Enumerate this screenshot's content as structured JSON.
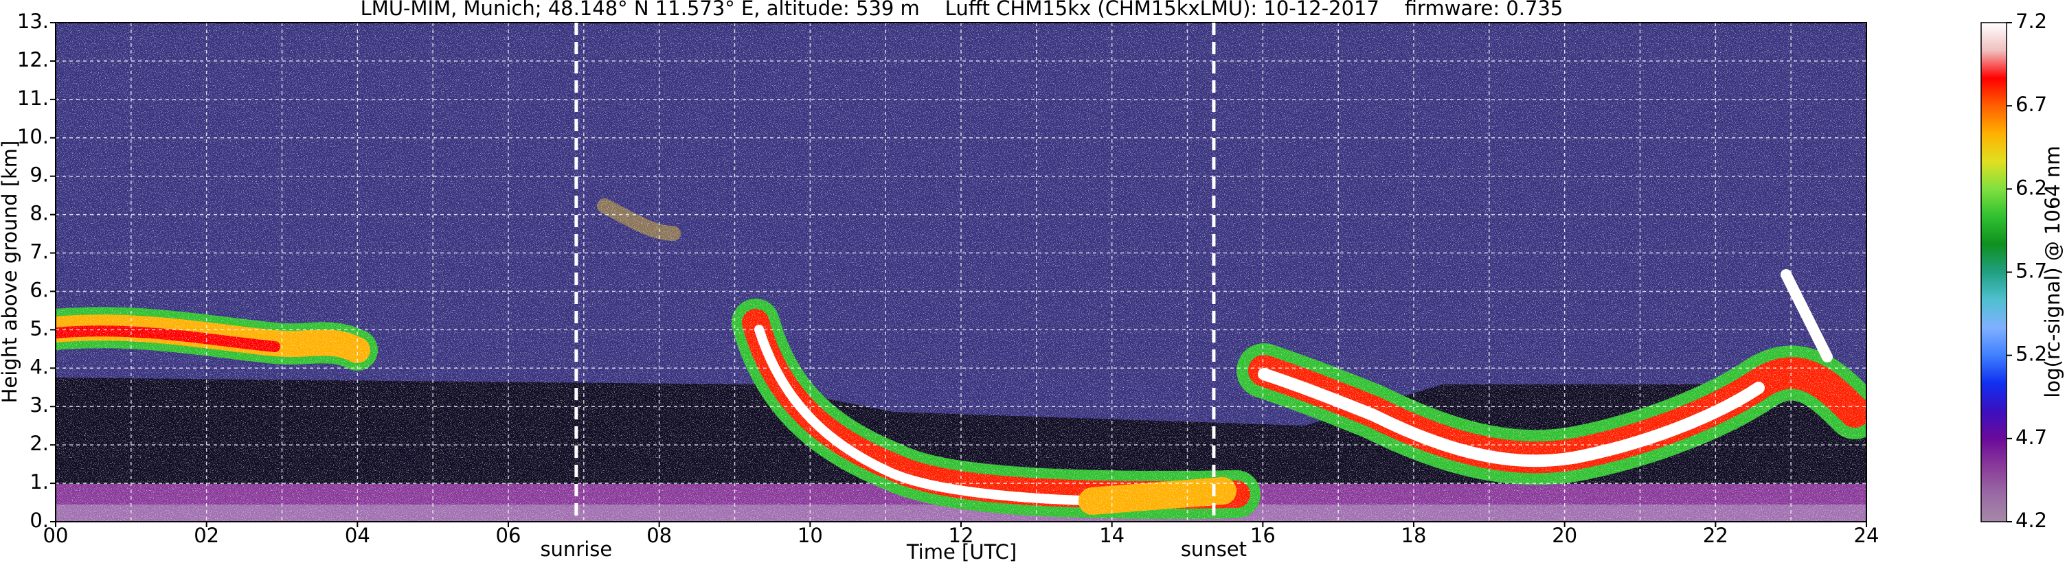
{
  "chart_data": {
    "type": "heatmap",
    "title": "LMU-MIM, Munich; 48.148° N 11.573° E, altitude: 539 m    Lufft CHM15kx (CHM15kxLMU): 10-12-2017    firmware: 0.735",
    "xlabel": "Time [UTC]",
    "ylabel": "Height above ground [km]",
    "xlim": [
      0,
      24
    ],
    "xticks": [
      {
        "value": 0,
        "label": "00"
      },
      {
        "value": 2,
        "label": "02"
      },
      {
        "value": 4,
        "label": "04"
      },
      {
        "value": 6,
        "label": "06"
      },
      {
        "value": 8,
        "label": "08"
      },
      {
        "value": 10,
        "label": "10"
      },
      {
        "value": 12,
        "label": "12"
      },
      {
        "value": 14,
        "label": "14"
      },
      {
        "value": 16,
        "label": "16"
      },
      {
        "value": 18,
        "label": "18"
      },
      {
        "value": 20,
        "label": "20"
      },
      {
        "value": 22,
        "label": "22"
      },
      {
        "value": 24,
        "label": "24"
      }
    ],
    "xminorticks": [
      1,
      3,
      5,
      7,
      9,
      11,
      13,
      15,
      17,
      19,
      21,
      23
    ],
    "ylim": [
      0,
      13
    ],
    "yticks": [
      {
        "value": 0,
        "label": "0."
      },
      {
        "value": 1,
        "label": "1."
      },
      {
        "value": 2,
        "label": "2."
      },
      {
        "value": 3,
        "label": "3."
      },
      {
        "value": 4,
        "label": "4."
      },
      {
        "value": 5,
        "label": "5."
      },
      {
        "value": 6,
        "label": "6."
      },
      {
        "value": 7,
        "label": "7."
      },
      {
        "value": 8,
        "label": "8."
      },
      {
        "value": 9,
        "label": "9."
      },
      {
        "value": 10,
        "label": "10."
      },
      {
        "value": 11,
        "label": "11."
      },
      {
        "value": 12,
        "label": "12."
      },
      {
        "value": 13,
        "label": "13."
      }
    ],
    "grid": true,
    "colorbar": {
      "label": "log(rc-signal) @ 1064 nm",
      "lim": [
        4.2,
        7.2
      ],
      "ticks": [
        4.2,
        4.7,
        5.2,
        5.7,
        6.2,
        6.7,
        7.2
      ],
      "colors": [
        "#a58aa8",
        "#9a6aa5",
        "#8a3a9a",
        "#6a0a9a",
        "#3a10c0",
        "#1030f0",
        "#4080ff",
        "#80b0ff",
        "#50c0d0",
        "#20a080",
        "#109020",
        "#30c030",
        "#80e040",
        "#e0e020",
        "#ffb000",
        "#ff6000",
        "#ff0000",
        "#f0c0c0",
        "#ffffff"
      ]
    },
    "annotations": [
      {
        "text": "sunrise",
        "x": 6.9
      },
      {
        "text": "sunset",
        "x": 15.35
      }
    ]
  }
}
